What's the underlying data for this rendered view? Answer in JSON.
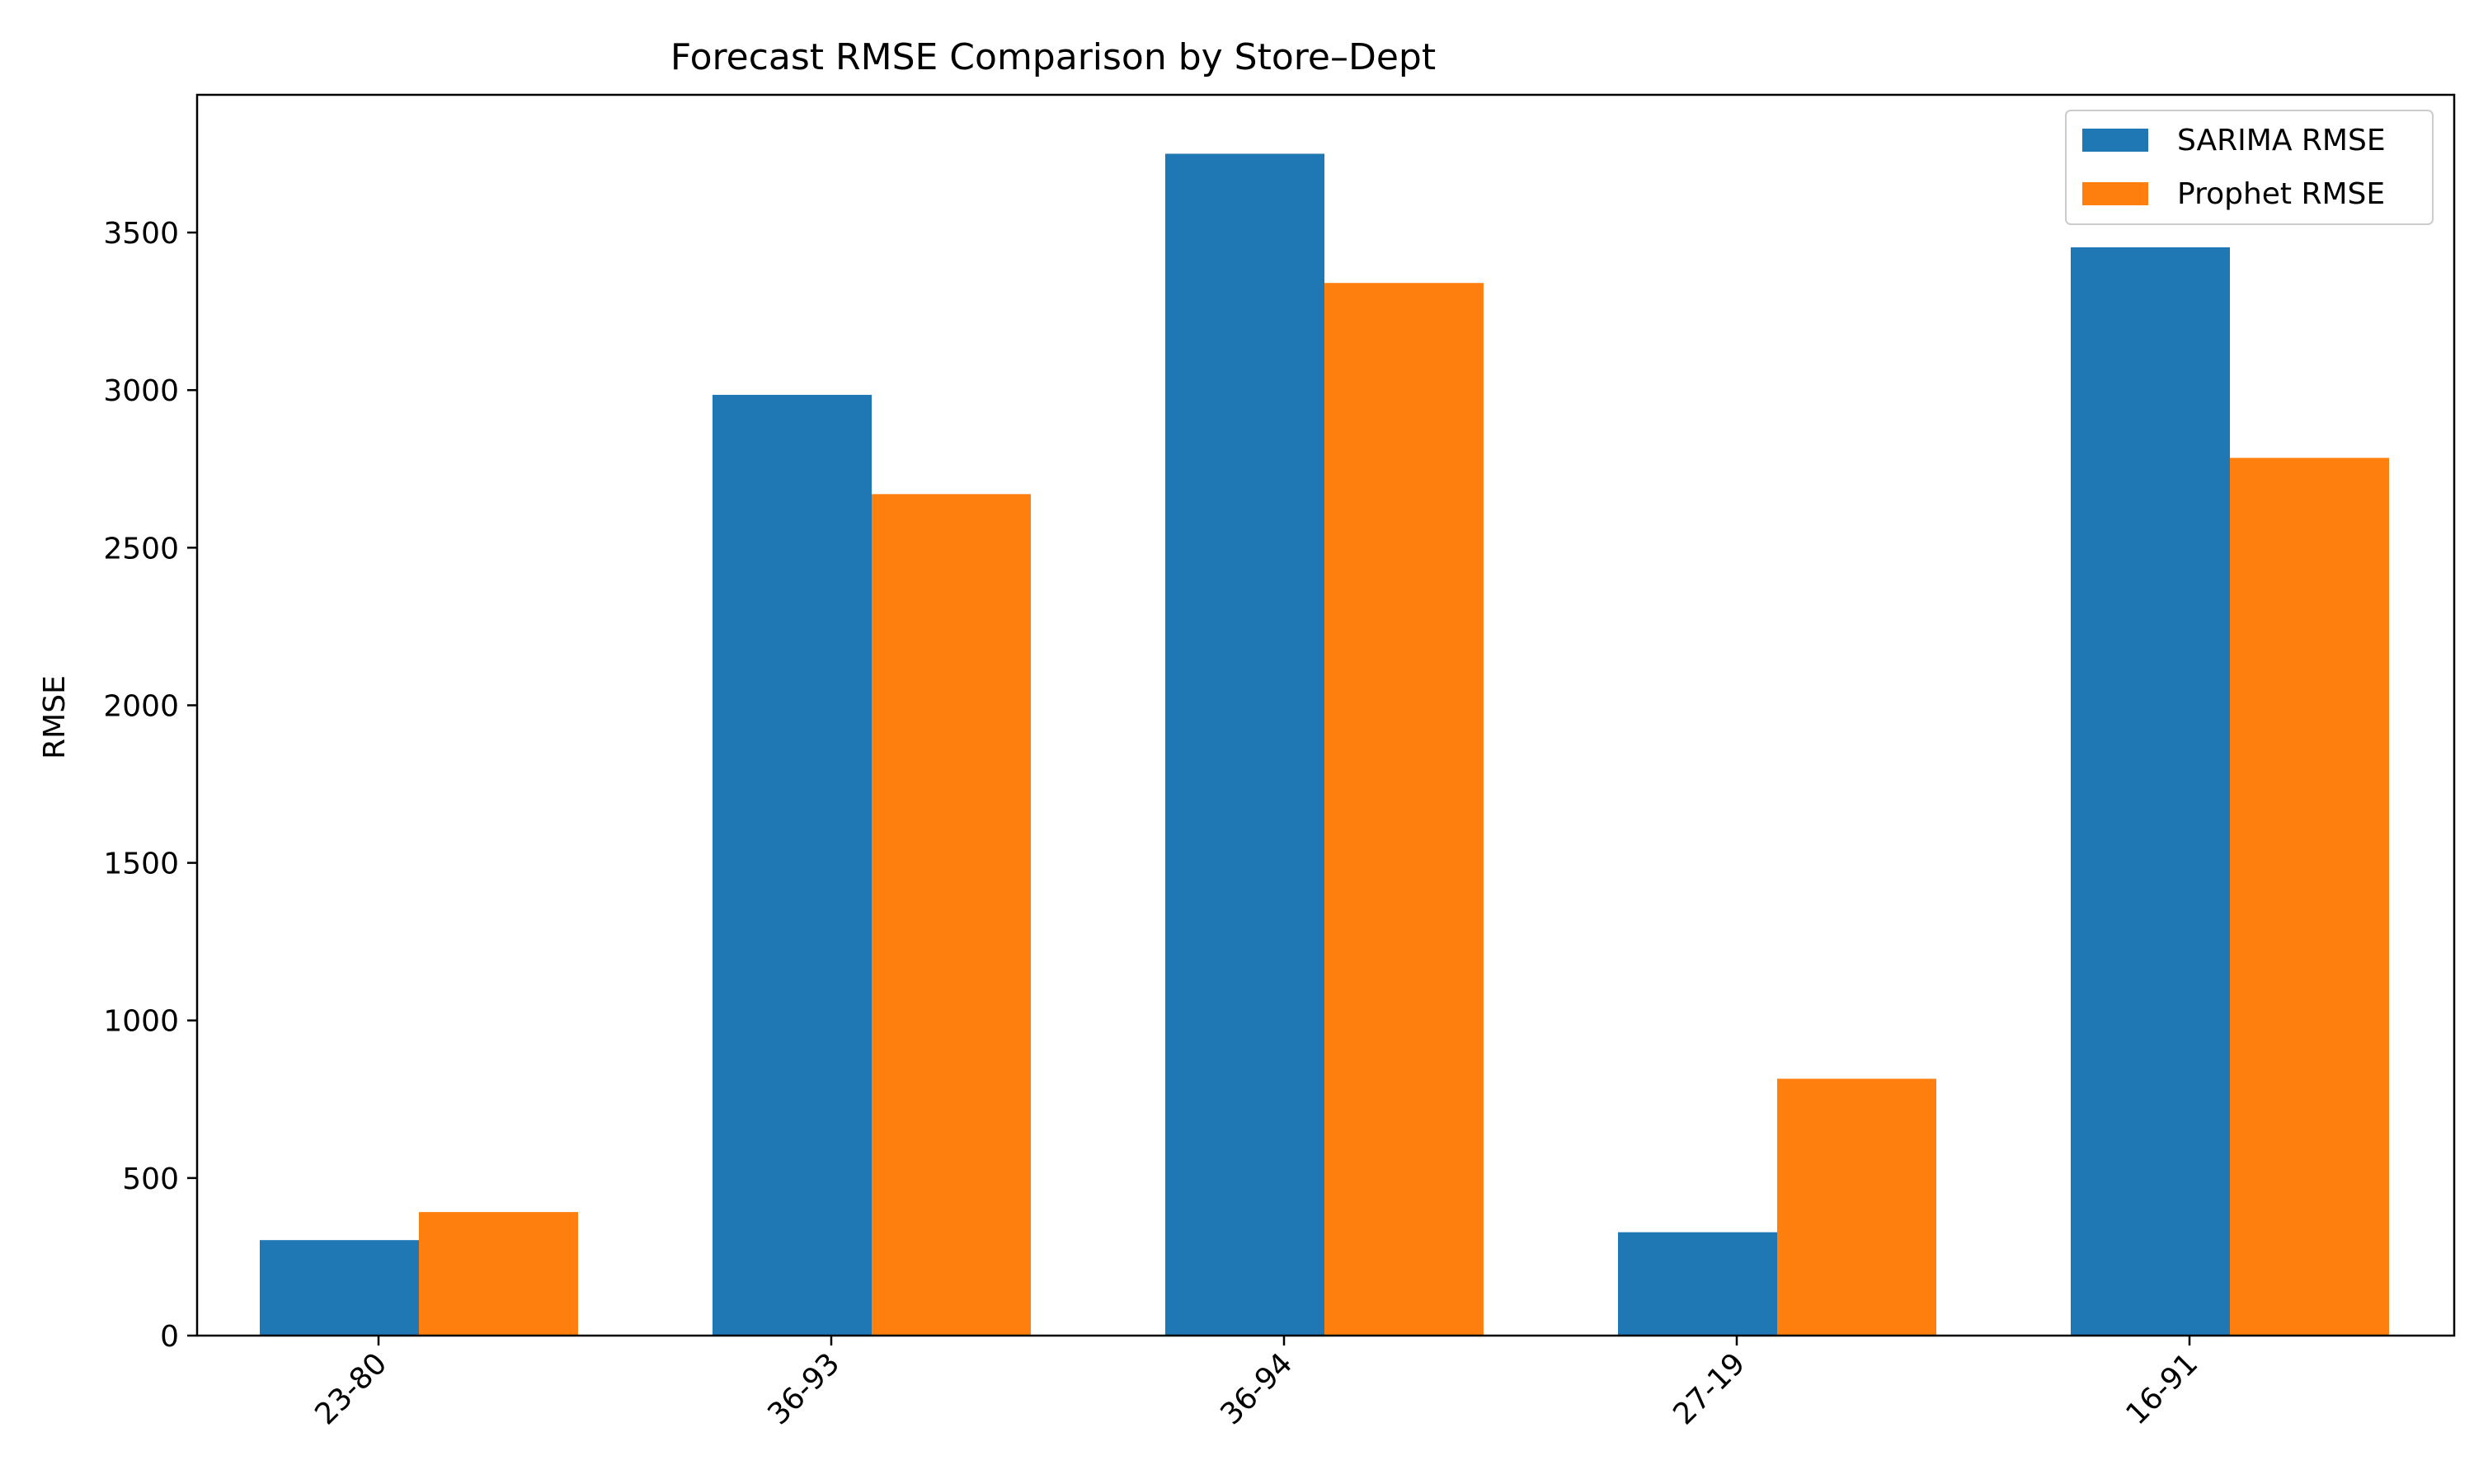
{
  "chart_data": {
    "type": "bar",
    "title": "Forecast RMSE Comparison by Store–Dept",
    "xlabel": "",
    "ylabel": "RMSE",
    "categories": [
      "23-80",
      "36-93",
      "36-94",
      "27-19",
      "16-91"
    ],
    "series": [
      {
        "name": "SARIMA RMSE",
        "color": "#1f77b4",
        "values": [
          303,
          2985,
          3750,
          328,
          3453
        ]
      },
      {
        "name": "Prophet RMSE",
        "color": "#ff7f0e",
        "values": [
          392,
          2670,
          3340,
          815,
          2785
        ]
      }
    ],
    "ylim": [
      0,
      3937
    ],
    "yticks": [
      0,
      500,
      1000,
      1500,
      2000,
      2500,
      3000,
      3500
    ],
    "grid": false,
    "legend_position": "top-right",
    "xtick_rotation": -45
  }
}
